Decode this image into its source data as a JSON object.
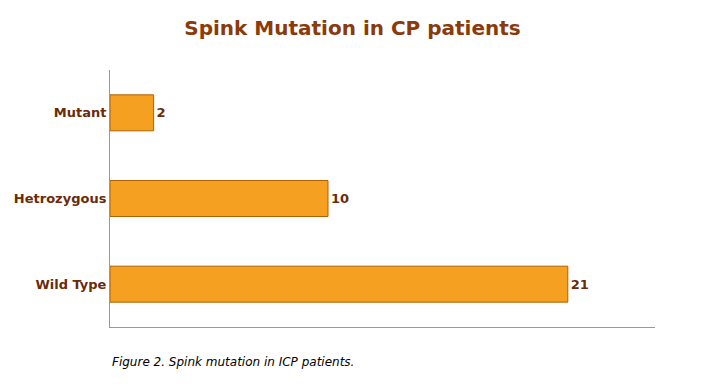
{
  "chart_data": {
    "type": "bar",
    "orientation": "horizontal",
    "title": "Spink Mutation in CP patients",
    "caption": "Figure 2. Spink mutation in ICP patients.",
    "categories": [
      "Wild Type",
      "Hetrozygous",
      "Mutant"
    ],
    "values": [
      21,
      10,
      2
    ],
    "color": "#F5A020",
    "xlim": [
      0,
      25
    ],
    "data_labels": true,
    "tick_labels": "y",
    "grid": false
  }
}
